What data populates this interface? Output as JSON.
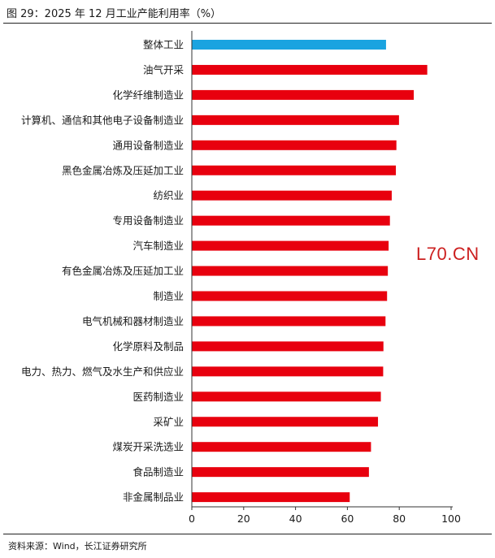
{
  "figure": {
    "title": "图 29：2025 年 12 月工业产能利用率（%）",
    "source": "资料来源：Wind，长江证券研究所",
    "watermark": "L70.CN"
  },
  "colors": {
    "highlight": "#1aa3e0",
    "bar": "#e8000e",
    "axis": "#333333"
  },
  "chart_data": {
    "type": "bar",
    "orientation": "horizontal",
    "title": "",
    "xlabel": "",
    "ylabel": "",
    "xlim": [
      0,
      100
    ],
    "xticks": [
      0,
      20,
      40,
      60,
      80,
      100
    ],
    "grid": false,
    "categories": [
      "整体工业",
      "油气开采",
      "化学纤维制造业",
      "计算机、通信和其他电子设备制造业",
      "通用设备制造业",
      "黑色金属冶炼及压延加工业",
      "纺织业",
      "专用设备制造业",
      "汽车制造业",
      "有色金属冶炼及压延加工业",
      "制造业",
      "电气机械和器材制造业",
      "化学原料及制品",
      "电力、热力、燃气及水生产和供应业",
      "医药制造业",
      "采矿业",
      "煤炭开采洗选业",
      "食品制造业",
      "非金属制品业"
    ],
    "values": [
      74.9,
      90.8,
      85.6,
      79.9,
      78.9,
      78.7,
      77.1,
      76.4,
      75.9,
      75.6,
      75.3,
      74.7,
      73.9,
      73.8,
      72.9,
      71.8,
      69.1,
      68.3,
      60.9
    ],
    "highlight_index": 0
  }
}
